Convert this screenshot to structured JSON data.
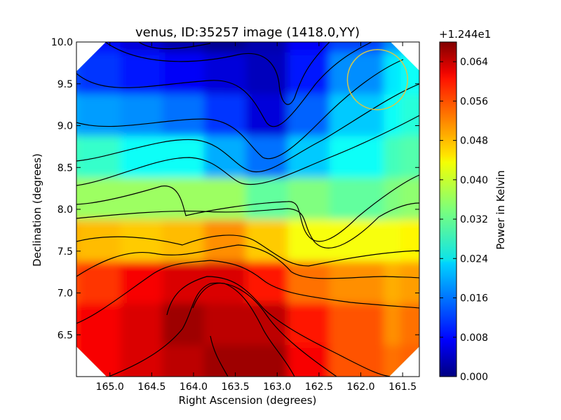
{
  "chart_data": {
    "type": "heatmap",
    "title": "venus, ID:35257 image (1418.0,YY)",
    "xlabel": "Right Ascension (degrees)",
    "ylabel": "Declination (degrees)",
    "xlim": [
      165.4,
      161.3
    ],
    "ylim": [
      6.0,
      10.0
    ],
    "xticks": [
      165.0,
      164.5,
      164.0,
      163.5,
      163.0,
      162.5,
      162.0,
      161.5
    ],
    "xtick_labels": [
      "165.0",
      "164.5",
      "164.0",
      "163.5",
      "163.0",
      "162.5",
      "162.0",
      "161.5"
    ],
    "yticks": [
      6.5,
      7.0,
      7.5,
      8.0,
      8.5,
      9.0,
      9.5,
      10.0
    ],
    "ytick_labels": [
      "6.5",
      "7.0",
      "7.5",
      "8.0",
      "8.5",
      "9.0",
      "9.5",
      "10.0"
    ],
    "colorbar": {
      "label": "Power in Kelvin",
      "offset_label": "+1.244e1",
      "offset": 12.44,
      "range": [
        0.0,
        0.068
      ],
      "ticks": [
        0.0,
        0.008,
        0.016,
        0.024,
        0.032,
        0.04,
        0.048,
        0.056,
        0.064
      ],
      "tick_labels": [
        "0.000",
        "0.008",
        "0.016",
        "0.024",
        "0.032",
        "0.040",
        "0.048",
        "0.056",
        "0.064"
      ],
      "colormap": "jet"
    },
    "field": {
      "grid_x": [
        165.4,
        165.0,
        164.5,
        164.0,
        163.5,
        163.0,
        162.5,
        162.0,
        161.5,
        161.3
      ],
      "grid_y": [
        10.0,
        9.5,
        9.0,
        8.5,
        8.0,
        7.5,
        7.0,
        6.5,
        6.0
      ],
      "values": [
        [
          0.012,
          0.009,
          0.006,
          0.003,
          0.001,
          0.003,
          0.008,
          0.013,
          0.018,
          0.02
        ],
        [
          0.014,
          0.012,
          0.01,
          0.008,
          0.006,
          0.004,
          0.01,
          0.018,
          0.024,
          0.026
        ],
        [
          0.02,
          0.019,
          0.018,
          0.016,
          0.012,
          0.006,
          0.015,
          0.022,
          0.026,
          0.028
        ],
        [
          0.03,
          0.029,
          0.026,
          0.026,
          0.02,
          0.016,
          0.022,
          0.026,
          0.03,
          0.031
        ],
        [
          0.036,
          0.036,
          0.036,
          0.036,
          0.036,
          0.032,
          0.034,
          0.032,
          0.034,
          0.035
        ],
        [
          0.048,
          0.047,
          0.046,
          0.047,
          0.05,
          0.046,
          0.042,
          0.042,
          0.042,
          0.043
        ],
        [
          0.054,
          0.056,
          0.06,
          0.062,
          0.062,
          0.058,
          0.052,
          0.05,
          0.048,
          0.049
        ],
        [
          0.058,
          0.06,
          0.062,
          0.066,
          0.064,
          0.064,
          0.058,
          0.054,
          0.05,
          0.052
        ],
        [
          0.058,
          0.06,
          0.062,
          0.064,
          0.066,
          0.066,
          0.06,
          0.054,
          0.052,
          0.053
        ]
      ],
      "peak": {
        "x": 163.7,
        "y": 6.85,
        "value": 0.068
      },
      "minimum": {
        "x": 163.5,
        "y": 10.0,
        "value": 0.0
      }
    },
    "marker": {
      "shape": "circle",
      "x": 161.8,
      "y": 9.55,
      "radius_deg": 0.36,
      "color": "#d4c84a"
    },
    "contour_count": 14,
    "grid": false,
    "legend": "none"
  }
}
